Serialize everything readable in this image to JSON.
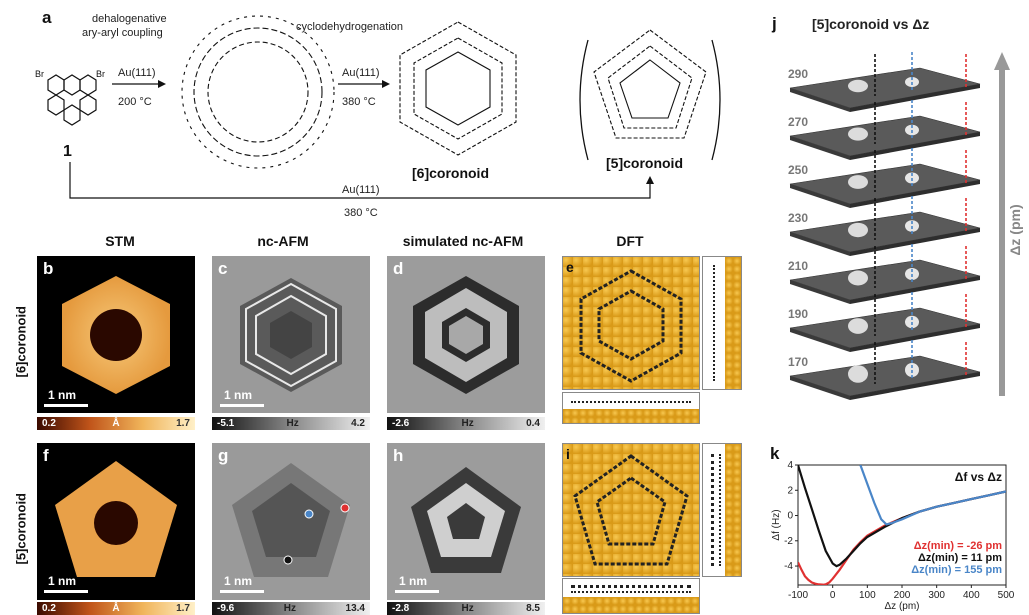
{
  "panel_labels": {
    "a": "a",
    "b": "b",
    "c": "c",
    "d": "d",
    "e": "e",
    "f": "f",
    "g": "g",
    "h": "h",
    "i": "i",
    "j": "j",
    "k": "k"
  },
  "scheme": {
    "step1_top": "dehalogenative",
    "step1_bottom": "ary-aryl coupling",
    "step1_cond1": "Au(111)",
    "step1_cond2": "200 °C",
    "step2_top": "cyclodehydrogenation",
    "step2_cond1": "Au(111)",
    "step2_cond2": "380 °C",
    "precursor_label": "1",
    "br1": "Br",
    "br2": "Br",
    "product6_label": "[6]coronoid",
    "product5_label": "[5]coronoid",
    "bottom_cond1": "Au(111)",
    "bottom_cond2": "380 °C"
  },
  "columns": {
    "stm": "STM",
    "ncafm": "nc-AFM",
    "sim": "simulated nc-AFM",
    "dft": "DFT"
  },
  "rows": {
    "r6": "[6]coronoid",
    "r5": "[5]coronoid"
  },
  "scalebars": {
    "b": "1 nm",
    "c": "1 nm",
    "f": "1 nm",
    "g": "1 nm",
    "h": "1 nm"
  },
  "colorbars": {
    "b": {
      "min": "0.2",
      "unit": "Å",
      "max": "1.7"
    },
    "c": {
      "min": "-5.1",
      "unit": "Hz",
      "max": "4.2"
    },
    "d": {
      "min": "-2.6",
      "unit": "Hz",
      "max": "0.4"
    },
    "f": {
      "min": "0.2",
      "unit": "Å",
      "max": "1.7"
    },
    "g": {
      "min": "-9.6",
      "unit": "Hz",
      "max": "13.4"
    },
    "h": {
      "min": "-2.8",
      "unit": "Hz",
      "max": "8.5"
    }
  },
  "panel_j": {
    "title": "[5]coronoid vs Δz",
    "axis_label": "Δz (pm)",
    "heights": [
      "290",
      "270",
      "250",
      "230",
      "210",
      "190",
      "170"
    ]
  },
  "chart_data": {
    "type": "line",
    "title": "Δf vs Δz",
    "xlabel": "Δz (pm)",
    "ylabel": "Δf (Hz)",
    "xlim": [
      -100,
      500
    ],
    "ylim": [
      -5.5,
      4
    ],
    "xticks": [
      "-100",
      "0",
      "100",
      "200",
      "300",
      "400",
      "500"
    ],
    "yticks": [
      "4",
      "2",
      "0",
      "-2",
      "-4"
    ],
    "series": [
      {
        "name": "Δz(min) = -26 pm",
        "color": "#e03131",
        "x": [
          -100,
          -90,
          -80,
          -70,
          -60,
          -50,
          -40,
          -30,
          -26,
          -20,
          -10,
          0,
          20,
          40,
          60,
          80,
          100,
          150,
          200,
          250,
          300,
          350,
          400,
          450,
          500
        ],
        "y": [
          -3.7,
          -4.3,
          -4.8,
          -5.1,
          -5.3,
          -5.4,
          -5.45,
          -5.47,
          -5.48,
          -5.45,
          -5.3,
          -5.0,
          -4.3,
          -3.5,
          -2.7,
          -2.1,
          -1.6,
          -0.8,
          -0.2,
          0.3,
          0.7,
          1.0,
          1.3,
          1.6,
          1.9
        ]
      },
      {
        "name": "Δz(min) = 11 pm",
        "color": "#111111",
        "x": [
          -100,
          -80,
          -60,
          -40,
          -20,
          0,
          11,
          20,
          40,
          60,
          80,
          100,
          150,
          200,
          250,
          300,
          350,
          400,
          450,
          500
        ],
        "y": [
          4.0,
          2.2,
          0.5,
          -1.2,
          -2.8,
          -3.8,
          -4.0,
          -3.9,
          -3.4,
          -2.8,
          -2.2,
          -1.7,
          -0.9,
          -0.2,
          0.3,
          0.7,
          1.0,
          1.3,
          1.6,
          1.9
        ]
      },
      {
        "name": "Δz(min) = 155 pm",
        "color": "#4a86c8",
        "x": [
          80,
          100,
          120,
          140,
          155,
          170,
          200,
          250,
          300,
          350,
          400,
          450,
          500
        ],
        "y": [
          4.0,
          2.5,
          1.0,
          -0.3,
          -0.7,
          -0.6,
          -0.3,
          0.3,
          0.7,
          1.0,
          1.3,
          1.6,
          1.9
        ]
      }
    ]
  }
}
